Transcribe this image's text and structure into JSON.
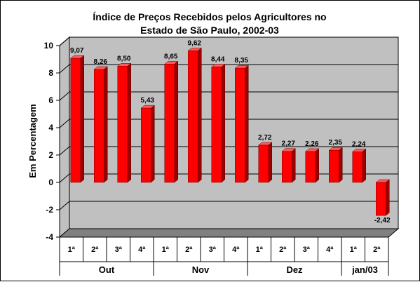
{
  "chart_data": {
    "type": "bar",
    "title_lines": [
      "Índice de Preços Recebidos pelos Agricultores no",
      "Estado de São Paulo, 2002-03"
    ],
    "ylabel": "Em Percentagem",
    "xlabel": "",
    "ylim": [
      -4,
      10
    ],
    "yticks": [
      -4,
      -2,
      0,
      2,
      4,
      6,
      8,
      10
    ],
    "grid": true,
    "categories": [
      "1ª",
      "2ª",
      "3ª",
      "4ª",
      "1ª",
      "2ª",
      "3ª",
      "4ª",
      "1ª",
      "2ª",
      "3ª",
      "4ª",
      "1ª",
      "2ª"
    ],
    "groups": [
      {
        "label": "Out",
        "count": 4
      },
      {
        "label": "Nov",
        "count": 4
      },
      {
        "label": "Dez",
        "count": 4
      },
      {
        "label": "jan/03",
        "count": 2
      }
    ],
    "values": [
      9.07,
      8.26,
      8.5,
      5.43,
      8.65,
      9.62,
      8.44,
      8.35,
      2.72,
      2.27,
      2.26,
      2.35,
      2.24,
      -2.42
    ],
    "value_labels": [
      "9,07",
      "8,26",
      "8,50",
      "5,43",
      "8,65",
      "9,62",
      "8,44",
      "8,35",
      "2,72",
      "2,27",
      "2,26",
      "2,35",
      "2,24",
      "-2,42"
    ],
    "colors": {
      "bar_front": "#ff0000",
      "bar_side": "#990000",
      "bar_top": "#ff5a5a",
      "wall": "#c0c0c0",
      "floor": "#808080"
    }
  }
}
